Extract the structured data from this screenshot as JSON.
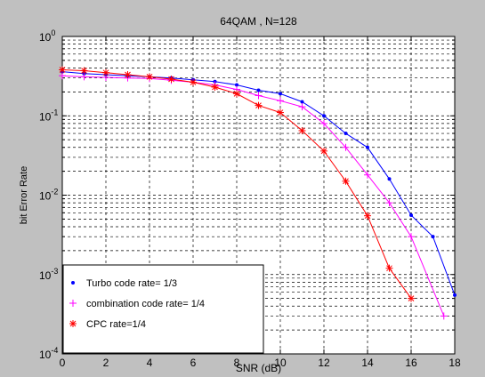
{
  "chart_data": {
    "type": "line",
    "title": "64QAM  ,  N=128",
    "xlabel": "SNR (dB)",
    "ylabel": "bit Error Rate",
    "x_scale": "linear",
    "y_scale": "log",
    "xlim": [
      0,
      18
    ],
    "ylim": [
      0.0001,
      1
    ],
    "x_ticks": [
      "0",
      "2",
      "4",
      "6",
      "8",
      "10",
      "12",
      "14",
      "16",
      "18"
    ],
    "y_ticks": [
      {
        "base": "10",
        "exp": "0",
        "value": 1
      },
      {
        "base": "10",
        "exp": "-1",
        "value": 0.1
      },
      {
        "base": "10",
        "exp": "-2",
        "value": 0.01
      },
      {
        "base": "10",
        "exp": "-3",
        "value": 0.001
      },
      {
        "base": "10",
        "exp": "-4",
        "value": 0.0001
      }
    ],
    "grid": true,
    "legend_position": "bottom-left",
    "series": [
      {
        "name": "Turbo code rate= 1/3",
        "color": "#0000ff",
        "marker": "dot",
        "x": [
          0,
          1,
          2,
          3,
          4,
          5,
          6,
          7,
          8,
          9,
          10,
          11,
          12,
          13,
          14,
          15,
          16,
          17,
          18
        ],
        "y": [
          0.36,
          0.34,
          0.33,
          0.32,
          0.31,
          0.3,
          0.285,
          0.27,
          0.245,
          0.21,
          0.19,
          0.15,
          0.1,
          0.06,
          0.04,
          0.016,
          0.0056,
          0.003,
          0.00055
        ]
      },
      {
        "name": "combination code rate= 1/4",
        "color": "#ff00ff",
        "marker": "plus",
        "x": [
          0,
          1,
          2,
          3,
          4,
          5,
          6,
          7,
          8,
          9,
          10,
          11,
          12,
          13,
          14,
          15,
          16,
          17.5
        ],
        "y": [
          0.32,
          0.31,
          0.305,
          0.3,
          0.295,
          0.28,
          0.265,
          0.245,
          0.215,
          0.18,
          0.155,
          0.13,
          0.08,
          0.04,
          0.018,
          0.008,
          0.003,
          0.0003
        ]
      },
      {
        "name": "CPC   rate=1/4",
        "color": "#ff0000",
        "marker": "star",
        "x": [
          0,
          1,
          2,
          3,
          4,
          5,
          6,
          7,
          8,
          9,
          10,
          11,
          12,
          13,
          14,
          15,
          16
        ],
        "y": [
          0.38,
          0.37,
          0.35,
          0.33,
          0.31,
          0.29,
          0.265,
          0.23,
          0.19,
          0.135,
          0.11,
          0.065,
          0.036,
          0.015,
          0.0055,
          0.0012,
          0.0005
        ]
      }
    ]
  }
}
